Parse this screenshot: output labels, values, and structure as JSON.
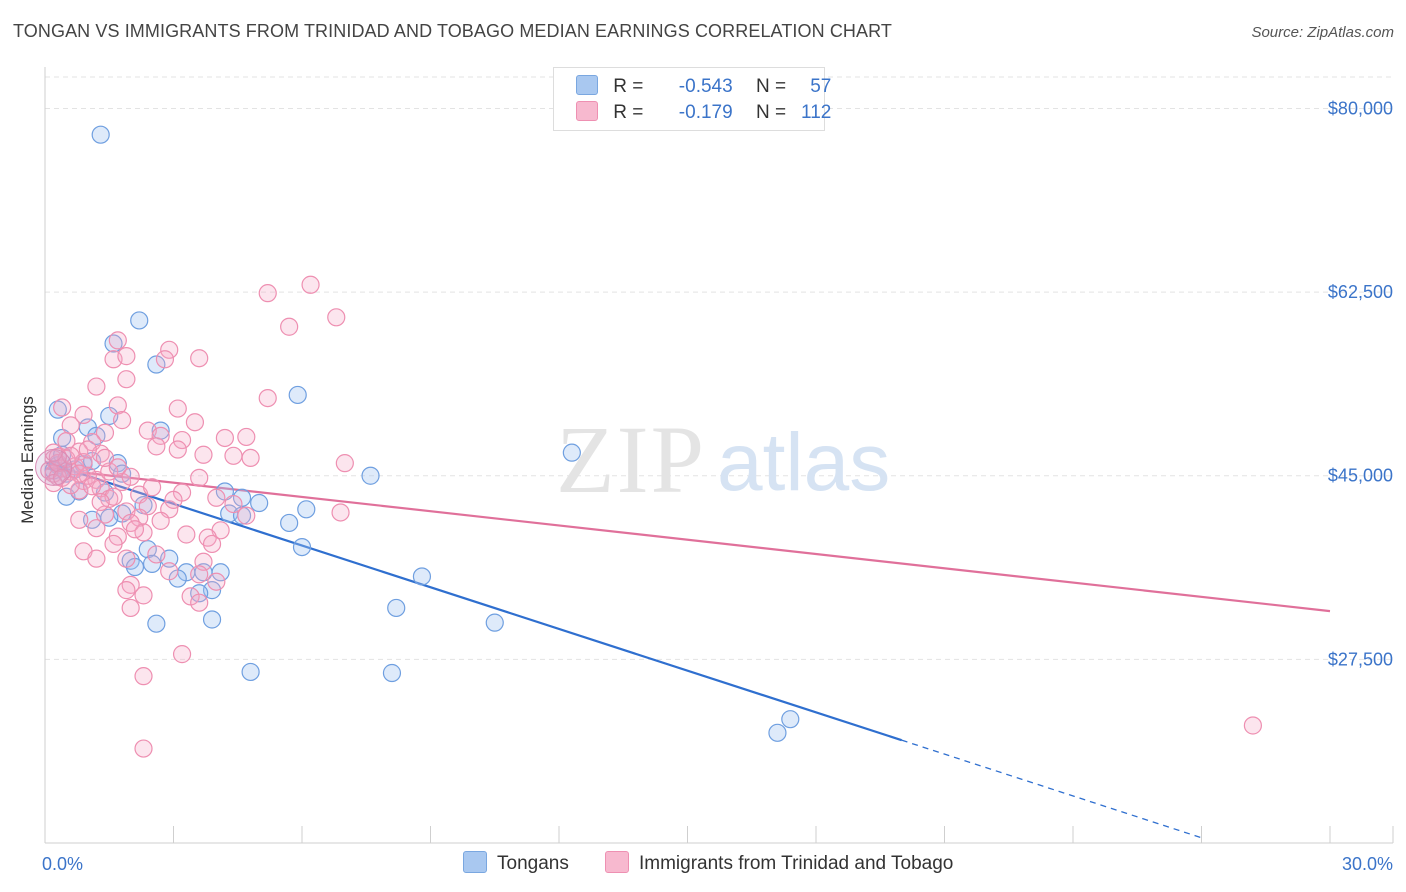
{
  "header": {
    "title": "TONGAN VS IMMIGRANTS FROM TRINIDAD AND TOBAGO MEDIAN EARNINGS CORRELATION CHART",
    "source": "Source: ZipAtlas.com"
  },
  "watermark": {
    "zip": "ZIP",
    "atlas": "atlas"
  },
  "legend": {
    "rows": [
      {
        "r_label": "R =",
        "r_value": "-0.543",
        "n_label": "N =",
        "n_value": "57",
        "color": "#a9c8f0",
        "stroke": "#7aa7e0"
      },
      {
        "r_label": "R =",
        "r_value": "-0.179",
        "n_label": "N =",
        "n_value": "112",
        "color": "#f7b9cf",
        "stroke": "#ee90b2"
      }
    ]
  },
  "bottom_legend": {
    "items": [
      {
        "label": "Tongans",
        "color": "#a9c8f0",
        "stroke": "#7aa7e0"
      },
      {
        "label": "Immigrants from Trinidad and Tobago",
        "color": "#f7b9cf",
        "stroke": "#ee90b2"
      }
    ]
  },
  "chart_data": {
    "type": "scatter",
    "title": "TONGAN VS IMMIGRANTS FROM TRINIDAD AND TOBAGO MEDIAN EARNINGS CORRELATION CHART",
    "xlabel": "",
    "ylabel": "Median Earnings",
    "xlim": [
      0,
      30
    ],
    "ylim": [
      10000,
      83000
    ],
    "x_tick_labels": [
      "0.0%",
      "30.0%"
    ],
    "y_ticks": [
      27500,
      45000,
      62500,
      80000
    ],
    "y_tick_labels": [
      "$27,500",
      "$45,000",
      "$62,500",
      "$80,000"
    ],
    "grid": true,
    "legend_position": "top-center",
    "series": [
      {
        "name": "Tongans",
        "color": "#6f9fe0",
        "line_color": "#2f6fcf",
        "trend": {
          "x0": 0,
          "y0": 46300,
          "x1": 20,
          "y1": 19800,
          "dash_to_x": 27,
          "dash_to_y": 10500
        },
        "points": [
          [
            1.3,
            77500
          ],
          [
            2.2,
            59800
          ],
          [
            1.6,
            57600
          ],
          [
            2.6,
            55600
          ],
          [
            0.3,
            51300
          ],
          [
            1.5,
            50700
          ],
          [
            1.0,
            49600
          ],
          [
            0.4,
            48600
          ],
          [
            2.7,
            49300
          ],
          [
            1.2,
            48800
          ],
          [
            1.7,
            46200
          ],
          [
            0.3,
            46000
          ],
          [
            0.7,
            45600
          ],
          [
            0.5,
            45200
          ],
          [
            0.2,
            45500
          ],
          [
            0.5,
            43000
          ],
          [
            0.8,
            43500
          ],
          [
            1.4,
            43400
          ],
          [
            4.2,
            43500
          ],
          [
            4.6,
            42900
          ],
          [
            5.0,
            42400
          ],
          [
            6.1,
            41800
          ],
          [
            4.3,
            41400
          ],
          [
            4.6,
            41200
          ],
          [
            1.8,
            41400
          ],
          [
            1.5,
            41000
          ],
          [
            1.1,
            40800
          ],
          [
            5.7,
            40500
          ],
          [
            6.0,
            38200
          ],
          [
            2.4,
            38000
          ],
          [
            2.0,
            36900
          ],
          [
            2.9,
            37100
          ],
          [
            2.1,
            36300
          ],
          [
            2.5,
            36600
          ],
          [
            3.3,
            35800
          ],
          [
            3.7,
            35800
          ],
          [
            4.1,
            35800
          ],
          [
            3.1,
            35200
          ],
          [
            3.9,
            34100
          ],
          [
            3.6,
            33800
          ],
          [
            2.6,
            30900
          ],
          [
            3.9,
            31300
          ],
          [
            8.8,
            35400
          ],
          [
            8.2,
            32400
          ],
          [
            10.5,
            31000
          ],
          [
            4.8,
            26300
          ],
          [
            8.1,
            26200
          ],
          [
            5.9,
            52700
          ],
          [
            7.6,
            45000
          ],
          [
            12.3,
            47200
          ],
          [
            17.4,
            21800
          ],
          [
            17.1,
            20500
          ],
          [
            0.9,
            46100
          ],
          [
            1.8,
            45200
          ],
          [
            0.4,
            47000
          ],
          [
            1.1,
            46400
          ],
          [
            2.3,
            42200
          ]
        ]
      },
      {
        "name": "Immigrants from Trinidad and Tobago",
        "color": "#f4a3c0",
        "line_color": "#e0709a",
        "trend": {
          "x0": 0,
          "y0": 45700,
          "x1": 30,
          "y1": 32100
        },
        "points": [
          [
            6.2,
            63200
          ],
          [
            5.2,
            62400
          ],
          [
            6.8,
            60100
          ],
          [
            5.7,
            59200
          ],
          [
            1.7,
            57900
          ],
          [
            2.9,
            57000
          ],
          [
            1.6,
            56100
          ],
          [
            1.9,
            56400
          ],
          [
            3.6,
            56200
          ],
          [
            2.8,
            56100
          ],
          [
            1.9,
            54200
          ],
          [
            1.2,
            53500
          ],
          [
            5.2,
            52400
          ],
          [
            1.7,
            51700
          ],
          [
            3.1,
            51400
          ],
          [
            0.9,
            50800
          ],
          [
            0.4,
            51500
          ],
          [
            1.8,
            50300
          ],
          [
            3.5,
            50100
          ],
          [
            0.6,
            49800
          ],
          [
            2.4,
            49300
          ],
          [
            1.4,
            49100
          ],
          [
            2.7,
            48800
          ],
          [
            4.2,
            48600
          ],
          [
            4.7,
            48700
          ],
          [
            3.2,
            48400
          ],
          [
            1.1,
            48200
          ],
          [
            0.5,
            48300
          ],
          [
            2.6,
            47800
          ],
          [
            3.1,
            47500
          ],
          [
            0.8,
            47300
          ],
          [
            1.3,
            47100
          ],
          [
            3.7,
            47000
          ],
          [
            4.4,
            46900
          ],
          [
            4.8,
            46700
          ],
          [
            7.0,
            46200
          ],
          [
            0.2,
            46600
          ],
          [
            0.4,
            45700
          ],
          [
            0.6,
            45400
          ],
          [
            0.2,
            45200
          ],
          [
            0.3,
            44900
          ],
          [
            0.9,
            44500
          ],
          [
            1.2,
            44600
          ],
          [
            1.5,
            45400
          ],
          [
            1.8,
            44400
          ],
          [
            3.6,
            44800
          ],
          [
            1.3,
            43800
          ],
          [
            2.2,
            43200
          ],
          [
            0.8,
            43600
          ],
          [
            3.2,
            43400
          ],
          [
            4.0,
            42900
          ],
          [
            4.4,
            42300
          ],
          [
            2.4,
            42100
          ],
          [
            2.9,
            41800
          ],
          [
            1.9,
            41600
          ],
          [
            1.4,
            41300
          ],
          [
            2.2,
            41000
          ],
          [
            4.7,
            41200
          ],
          [
            6.9,
            41500
          ],
          [
            0.8,
            40800
          ],
          [
            2.0,
            40500
          ],
          [
            1.2,
            40000
          ],
          [
            4.1,
            39800
          ],
          [
            2.3,
            39600
          ],
          [
            3.3,
            39400
          ],
          [
            1.7,
            39200
          ],
          [
            3.8,
            39100
          ],
          [
            1.6,
            38500
          ],
          [
            0.9,
            37800
          ],
          [
            2.6,
            37500
          ],
          [
            1.2,
            37100
          ],
          [
            1.9,
            37100
          ],
          [
            3.7,
            36800
          ],
          [
            2.9,
            35900
          ],
          [
            3.6,
            35600
          ],
          [
            4.0,
            34900
          ],
          [
            2.0,
            34600
          ],
          [
            1.9,
            34100
          ],
          [
            2.3,
            33600
          ],
          [
            3.4,
            33500
          ],
          [
            3.6,
            32900
          ],
          [
            2.0,
            32400
          ],
          [
            3.2,
            28000
          ],
          [
            2.3,
            25900
          ],
          [
            2.3,
            19000
          ],
          [
            28.2,
            21200
          ],
          [
            0.1,
            45500
          ],
          [
            0.3,
            46200
          ],
          [
            0.5,
            46600
          ],
          [
            0.7,
            45900
          ],
          [
            0.9,
            46300
          ],
          [
            1.0,
            45000
          ],
          [
            1.1,
            44000
          ],
          [
            0.2,
            44300
          ],
          [
            0.6,
            46900
          ],
          [
            1.4,
            46700
          ],
          [
            1.7,
            45800
          ],
          [
            2.0,
            44900
          ],
          [
            2.5,
            43900
          ],
          [
            3.0,
            42700
          ],
          [
            0.4,
            44800
          ],
          [
            0.8,
            45200
          ],
          [
            1.5,
            42800
          ],
          [
            2.7,
            40700
          ],
          [
            3.9,
            38500
          ],
          [
            0.3,
            46800
          ],
          [
            1.6,
            43000
          ],
          [
            2.1,
            39900
          ],
          [
            0.2,
            47200
          ],
          [
            1.0,
            47500
          ],
          [
            0.6,
            44100
          ],
          [
            1.3,
            42500
          ]
        ]
      }
    ]
  }
}
